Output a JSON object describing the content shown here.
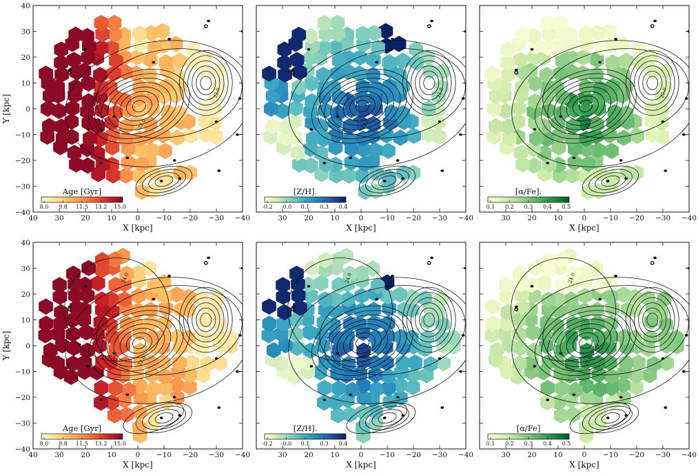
{
  "figure": {
    "xlabel": "X [kpc]",
    "ylabel": "Y [kpc]",
    "xlim": [
      40,
      -40
    ],
    "ylim": [
      -40,
      40
    ],
    "x_ticks": [
      40,
      30,
      20,
      10,
      0,
      -10,
      -20,
      -30,
      -40
    ],
    "y_ticks": [
      -40,
      -30,
      -20,
      -10,
      0,
      10,
      20,
      30,
      40
    ],
    "x_tick_labels": [
      "40",
      "30",
      "20",
      "10",
      "0",
      "−10",
      "−20",
      "−30",
      "−40"
    ],
    "y_tick_labels": [
      "−40",
      "−30",
      "−20",
      "−10",
      "0",
      "10",
      "20",
      "30",
      "40"
    ],
    "contour_labels": [
      "22.0",
      "24.0"
    ]
  },
  "colormaps": {
    "age": [
      "#fff7d6",
      "#fde39a",
      "#fdbf66",
      "#f9924a",
      "#ec5b36",
      "#cc2328",
      "#8c0a25"
    ],
    "zh": [
      "#fbfcd0",
      "#c8e9b7",
      "#7ecdbb",
      "#3eaac3",
      "#2280b8",
      "#22509a",
      "#0b1f64"
    ],
    "afe": [
      "#f9fbd5",
      "#e1f2b5",
      "#b7e19f",
      "#80c67e",
      "#46a85b",
      "#1a8442",
      "#005b2b"
    ]
  },
  "chart_data": [
    {
      "type": "heatmap",
      "panel": "top-left",
      "quantity": "Age",
      "colorbar_label": "Age [Gyr]",
      "colorbar_ticks": [
        "8.0",
        "9.8",
        "11.5",
        "13.2",
        "15.0"
      ],
      "cmap": "age",
      "vmin": 8.0,
      "vmax": 15.0,
      "model": "top"
    },
    {
      "type": "heatmap",
      "panel": "top-middle",
      "quantity": "[Z/H]",
      "colorbar_label": "[Z/H].",
      "colorbar_ticks": [
        "-0.2",
        "-0.0",
        "0.1",
        "0.3",
        "0.4"
      ],
      "cmap": "zh",
      "vmin": -0.2,
      "vmax": 0.4,
      "model": "top"
    },
    {
      "type": "heatmap",
      "panel": "top-right",
      "quantity": "[α/Fe]",
      "colorbar_label": "[α/Fe].",
      "colorbar_ticks": [
        "0.1",
        "0.2",
        "0.3",
        "0.4",
        "0.5"
      ],
      "cmap": "afe",
      "vmin": 0.1,
      "vmax": 0.5,
      "model": "top"
    },
    {
      "type": "heatmap",
      "panel": "bottom-left",
      "quantity": "Age",
      "colorbar_label": "Age [Gyr]",
      "colorbar_ticks": [
        "8.0",
        "9.8",
        "11.5",
        "13.2",
        "15.0"
      ],
      "cmap": "age",
      "vmin": 8.0,
      "vmax": 15.0,
      "model": "bottom"
    },
    {
      "type": "heatmap",
      "panel": "bottom-middle",
      "quantity": "[Z/H]",
      "colorbar_label": "[Z/H].",
      "colorbar_ticks": [
        "-0.2",
        "-0.0",
        "0.1",
        "0.3",
        "0.4"
      ],
      "cmap": "zh",
      "vmin": -0.2,
      "vmax": 0.4,
      "model": "bottom"
    },
    {
      "type": "heatmap",
      "panel": "bottom-right",
      "quantity": "[α/Fe]",
      "colorbar_label": "[α/Fe]",
      "colorbar_ticks": [
        "0.1",
        "0.2",
        "0.3",
        "0.4",
        "0.5"
      ],
      "cmap": "afe",
      "vmin": 0.1,
      "vmax": 0.5,
      "model": "bottom"
    }
  ]
}
